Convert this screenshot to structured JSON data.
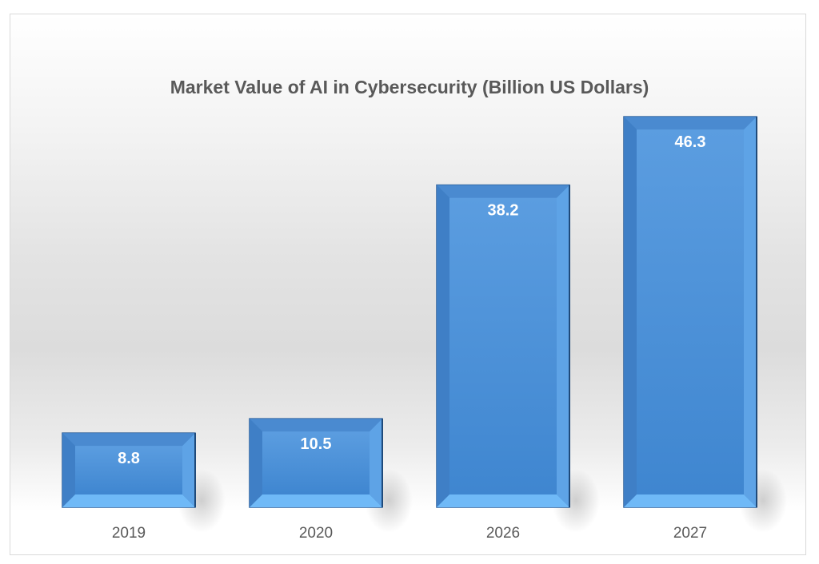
{
  "chart_data": {
    "type": "bar",
    "title": "Market Value of AI in Cybersecurity (Billion US Dollars)",
    "categories": [
      "2019",
      "2020",
      "2026",
      "2027"
    ],
    "values": [
      8.8,
      10.5,
      38.2,
      46.3
    ],
    "data_labels": [
      "8.8",
      "10.5",
      "38.2",
      "46.3"
    ],
    "xlabel": "",
    "ylabel": "",
    "grid": false,
    "legend": "none",
    "bar_color": "#4a8fd6",
    "style": "beveled"
  }
}
